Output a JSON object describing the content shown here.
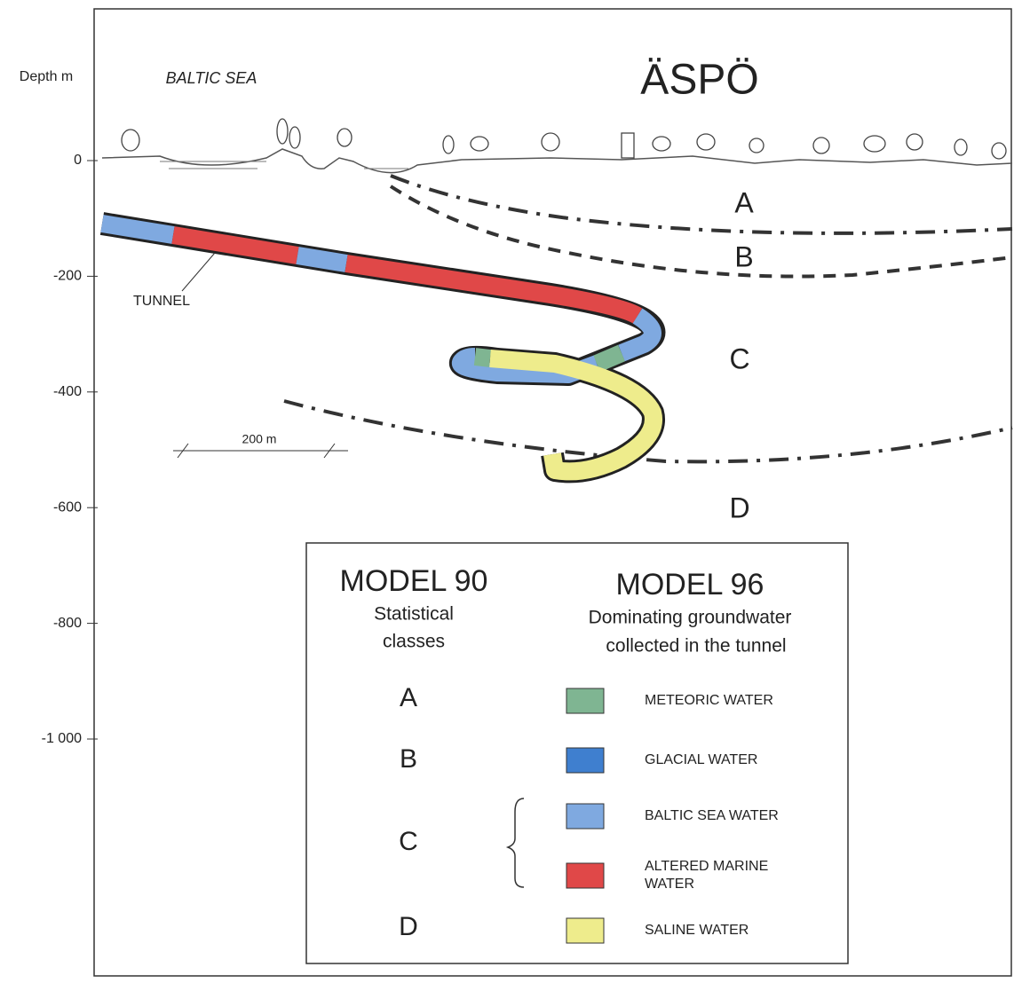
{
  "axis": {
    "label": "Depth m",
    "ticks": [
      "0",
      "-200",
      "-400",
      "-600",
      "-800",
      "-1 000"
    ]
  },
  "labels": {
    "sea": "BALTIC SEA",
    "island": "ÄSPÖ",
    "tunnel": "TUNNEL",
    "scale": "200 m"
  },
  "zones": [
    "A",
    "B",
    "C",
    "D"
  ],
  "legend": {
    "model90": {
      "title": "MODEL 90",
      "subtitle": [
        "Statistical",
        "classes"
      ],
      "classes": [
        "A",
        "B",
        "C",
        "D"
      ]
    },
    "model96": {
      "title": "MODEL 96",
      "subtitle": [
        "Dominating groundwater",
        "collected in the tunnel"
      ]
    },
    "items": [
      {
        "label": [
          "METEORIC WATER"
        ],
        "color": "#7fb592"
      },
      {
        "label": [
          "GLACIAL WATER"
        ],
        "color": "#3f7fcf"
      },
      {
        "label": [
          "BALTIC SEA WATER"
        ],
        "color": "#7fa9e0"
      },
      {
        "label": [
          "ALTERED MARINE",
          "WATER"
        ],
        "color": "#e04848"
      },
      {
        "label": [
          "SALINE WATER"
        ],
        "color": "#eeec8c"
      }
    ]
  }
}
